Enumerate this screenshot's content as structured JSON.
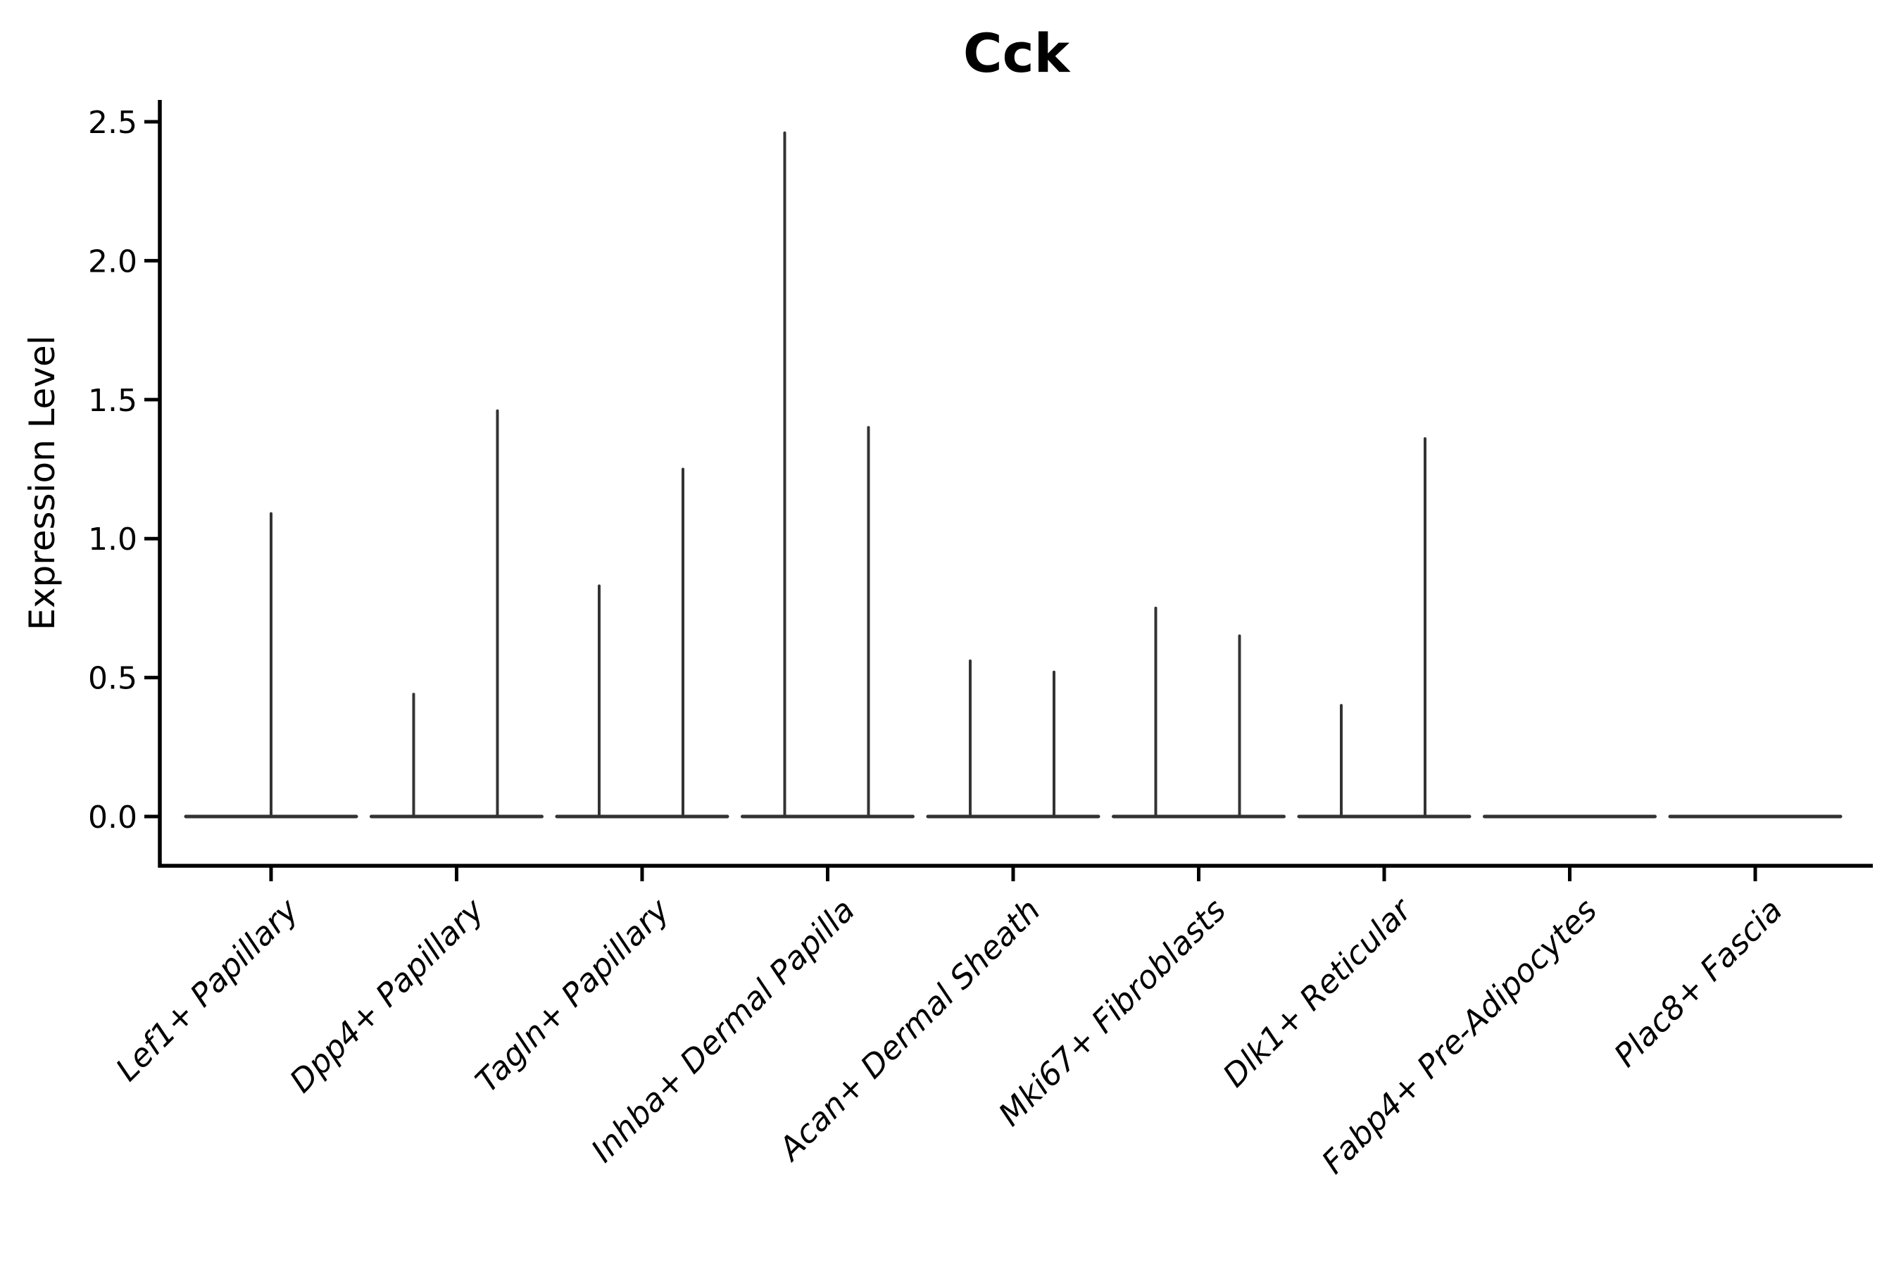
{
  "figure": {
    "title": "Cck",
    "ylabel": "Expression Level"
  },
  "chart_data": {
    "type": "violin",
    "title": "Cck",
    "xlabel": "",
    "ylabel": "Expression Level",
    "yticks": [
      "0.0",
      "0.5",
      "1.0",
      "1.5",
      "2.0",
      "2.5"
    ],
    "ylim": [
      -0.18,
      2.58
    ],
    "grid": false,
    "legend": "none",
    "categories": [
      "Lef1+ Papillary",
      "Dpp4+ Papillary",
      "Tagln+ Papillary",
      "Inhba+ Dermal Papilla",
      "Acan+ Dermal Sheath",
      "Mki67+ Fibroblasts",
      "Dlk1+ Reticular",
      "Fabp4+ Pre-Adipocytes",
      "Plac8+ Fascia"
    ],
    "violins": [
      {
        "category": "Lef1+ Papillary",
        "group_max": [
          1.09
        ]
      },
      {
        "category": "Dpp4+ Papillary",
        "group_max": [
          0.44,
          1.46
        ]
      },
      {
        "category": "Tagln+ Papillary",
        "group_max": [
          0.83,
          1.25
        ]
      },
      {
        "category": "Inhba+ Dermal Papilla",
        "group_max": [
          2.46,
          1.4
        ]
      },
      {
        "category": "Acan+ Dermal Sheath",
        "group_max": [
          0.56,
          0.52
        ]
      },
      {
        "category": "Mki67+ Fibroblasts",
        "group_max": [
          0.75,
          0.65
        ]
      },
      {
        "category": "Dlk1+ Reticular",
        "group_max": [
          0.4,
          1.36
        ]
      },
      {
        "category": "Fabp4+ Pre-Adipocytes",
        "group_max": [
          0,
          0
        ]
      },
      {
        "category": "Plac8+ Fascia",
        "group_max": [
          0,
          0
        ]
      }
    ],
    "style": {
      "violin_line_color": "#333333",
      "axis_color": "#000000",
      "text_color": "#000000",
      "background": "#ffffff"
    }
  }
}
